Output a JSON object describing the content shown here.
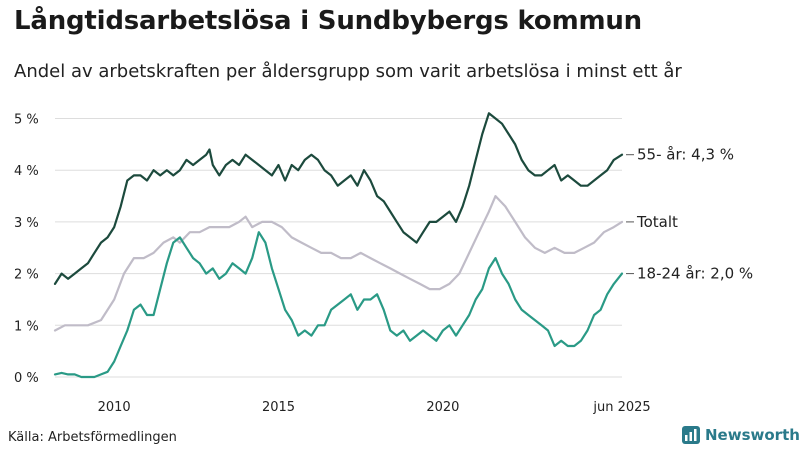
{
  "title": "Långtidsarbetslösa i Sundbybergs kommun",
  "subtitle": "Andel av arbetskraften per åldersgrupp som varit arbetslösa i minst ett år",
  "source": "Källa: Arbetsförmedlingen",
  "brand": "Newsworthy",
  "colors": {
    "s55": "#1c4a3d",
    "total": "#c0bcc8",
    "s1824": "#2a9a86",
    "brand": "#2a7a8a"
  },
  "chart_data": {
    "type": "line",
    "xlabel": "",
    "ylabel": "",
    "xlim": [
      2008.2,
      2025.45
    ],
    "ylim": [
      0,
      5.3
    ],
    "y_ticks": [
      0,
      1,
      2,
      3,
      4,
      5
    ],
    "y_tick_labels": [
      "0 %",
      "1 %",
      "2 %",
      "3 %",
      "4 %",
      "5 %"
    ],
    "x_ticks": [
      2010,
      2015,
      2020,
      2025.45
    ],
    "x_tick_labels": [
      "2010",
      "2015",
      "2020",
      "jun 2025"
    ],
    "grid": true,
    "series": [
      {
        "key": "s55",
        "name": "55- år",
        "end_label": "55- år: 4,3 %",
        "end_label_y": 4.3,
        "points": [
          [
            2008.2,
            1.8
          ],
          [
            2008.4,
            2.0
          ],
          [
            2008.6,
            1.9
          ],
          [
            2008.8,
            2.0
          ],
          [
            2009.0,
            2.1
          ],
          [
            2009.2,
            2.2
          ],
          [
            2009.4,
            2.4
          ],
          [
            2009.6,
            2.6
          ],
          [
            2009.8,
            2.7
          ],
          [
            2010.0,
            2.9
          ],
          [
            2010.2,
            3.3
          ],
          [
            2010.4,
            3.8
          ],
          [
            2010.6,
            3.9
          ],
          [
            2010.8,
            3.9
          ],
          [
            2011.0,
            3.8
          ],
          [
            2011.2,
            4.0
          ],
          [
            2011.4,
            3.9
          ],
          [
            2011.6,
            4.0
          ],
          [
            2011.8,
            3.9
          ],
          [
            2012.0,
            4.0
          ],
          [
            2012.2,
            4.2
          ],
          [
            2012.4,
            4.1
          ],
          [
            2012.6,
            4.2
          ],
          [
            2012.8,
            4.3
          ],
          [
            2012.9,
            4.4
          ],
          [
            2013.0,
            4.1
          ],
          [
            2013.2,
            3.9
          ],
          [
            2013.4,
            4.1
          ],
          [
            2013.6,
            4.2
          ],
          [
            2013.8,
            4.1
          ],
          [
            2014.0,
            4.3
          ],
          [
            2014.2,
            4.2
          ],
          [
            2014.4,
            4.1
          ],
          [
            2014.6,
            4.0
          ],
          [
            2014.8,
            3.9
          ],
          [
            2015.0,
            4.1
          ],
          [
            2015.2,
            3.8
          ],
          [
            2015.4,
            4.1
          ],
          [
            2015.6,
            4.0
          ],
          [
            2015.8,
            4.2
          ],
          [
            2016.0,
            4.3
          ],
          [
            2016.2,
            4.2
          ],
          [
            2016.4,
            4.0
          ],
          [
            2016.6,
            3.9
          ],
          [
            2016.8,
            3.7
          ],
          [
            2017.0,
            3.8
          ],
          [
            2017.2,
            3.9
          ],
          [
            2017.4,
            3.7
          ],
          [
            2017.6,
            4.0
          ],
          [
            2017.8,
            3.8
          ],
          [
            2018.0,
            3.5
          ],
          [
            2018.2,
            3.4
          ],
          [
            2018.4,
            3.2
          ],
          [
            2018.6,
            3.0
          ],
          [
            2018.8,
            2.8
          ],
          [
            2019.0,
            2.7
          ],
          [
            2019.2,
            2.6
          ],
          [
            2019.4,
            2.8
          ],
          [
            2019.6,
            3.0
          ],
          [
            2019.8,
            3.0
          ],
          [
            2020.0,
            3.1
          ],
          [
            2020.2,
            3.2
          ],
          [
            2020.4,
            3.0
          ],
          [
            2020.6,
            3.3
          ],
          [
            2020.8,
            3.7
          ],
          [
            2021.0,
            4.2
          ],
          [
            2021.2,
            4.7
          ],
          [
            2021.4,
            5.1
          ],
          [
            2021.6,
            5.0
          ],
          [
            2021.8,
            4.9
          ],
          [
            2022.0,
            4.7
          ],
          [
            2022.2,
            4.5
          ],
          [
            2022.4,
            4.2
          ],
          [
            2022.6,
            4.0
          ],
          [
            2022.8,
            3.9
          ],
          [
            2023.0,
            3.9
          ],
          [
            2023.2,
            4.0
          ],
          [
            2023.4,
            4.1
          ],
          [
            2023.6,
            3.8
          ],
          [
            2023.8,
            3.9
          ],
          [
            2024.0,
            3.8
          ],
          [
            2024.2,
            3.7
          ],
          [
            2024.4,
            3.7
          ],
          [
            2024.6,
            3.8
          ],
          [
            2024.8,
            3.9
          ],
          [
            2025.0,
            4.0
          ],
          [
            2025.2,
            4.2
          ],
          [
            2025.45,
            4.3
          ]
        ]
      },
      {
        "key": "total",
        "name": "Totalt",
        "end_label": "Totalt",
        "end_label_y": 3.0,
        "points": [
          [
            2008.2,
            0.9
          ],
          [
            2008.5,
            1.0
          ],
          [
            2008.8,
            1.0
          ],
          [
            2009.2,
            1.0
          ],
          [
            2009.6,
            1.1
          ],
          [
            2010.0,
            1.5
          ],
          [
            2010.3,
            2.0
          ],
          [
            2010.6,
            2.3
          ],
          [
            2010.9,
            2.3
          ],
          [
            2011.2,
            2.4
          ],
          [
            2011.5,
            2.6
          ],
          [
            2011.8,
            2.7
          ],
          [
            2012.0,
            2.6
          ],
          [
            2012.3,
            2.8
          ],
          [
            2012.6,
            2.8
          ],
          [
            2012.9,
            2.9
          ],
          [
            2013.2,
            2.9
          ],
          [
            2013.5,
            2.9
          ],
          [
            2013.8,
            3.0
          ],
          [
            2014.0,
            3.1
          ],
          [
            2014.2,
            2.9
          ],
          [
            2014.5,
            3.0
          ],
          [
            2014.8,
            3.0
          ],
          [
            2015.1,
            2.9
          ],
          [
            2015.4,
            2.7
          ],
          [
            2015.7,
            2.6
          ],
          [
            2016.0,
            2.5
          ],
          [
            2016.3,
            2.4
          ],
          [
            2016.6,
            2.4
          ],
          [
            2016.9,
            2.3
          ],
          [
            2017.2,
            2.3
          ],
          [
            2017.5,
            2.4
          ],
          [
            2017.8,
            2.3
          ],
          [
            2018.1,
            2.2
          ],
          [
            2018.4,
            2.1
          ],
          [
            2018.7,
            2.0
          ],
          [
            2019.0,
            1.9
          ],
          [
            2019.3,
            1.8
          ],
          [
            2019.6,
            1.7
          ],
          [
            2019.9,
            1.7
          ],
          [
            2020.2,
            1.8
          ],
          [
            2020.5,
            2.0
          ],
          [
            2020.8,
            2.4
          ],
          [
            2021.1,
            2.8
          ],
          [
            2021.4,
            3.2
          ],
          [
            2021.6,
            3.5
          ],
          [
            2021.9,
            3.3
          ],
          [
            2022.2,
            3.0
          ],
          [
            2022.5,
            2.7
          ],
          [
            2022.8,
            2.5
          ],
          [
            2023.1,
            2.4
          ],
          [
            2023.4,
            2.5
          ],
          [
            2023.7,
            2.4
          ],
          [
            2024.0,
            2.4
          ],
          [
            2024.3,
            2.5
          ],
          [
            2024.6,
            2.6
          ],
          [
            2024.9,
            2.8
          ],
          [
            2025.2,
            2.9
          ],
          [
            2025.45,
            3.0
          ]
        ]
      },
      {
        "key": "s1824",
        "name": "18-24 år",
        "end_label": "18-24 år: 2,0 %",
        "end_label_y": 2.0,
        "points": [
          [
            2008.2,
            0.05
          ],
          [
            2008.4,
            0.08
          ],
          [
            2008.6,
            0.05
          ],
          [
            2008.8,
            0.05
          ],
          [
            2009.0,
            0.0
          ],
          [
            2009.2,
            0.0
          ],
          [
            2009.4,
            0.0
          ],
          [
            2009.6,
            0.05
          ],
          [
            2009.8,
            0.1
          ],
          [
            2010.0,
            0.3
          ],
          [
            2010.2,
            0.6
          ],
          [
            2010.4,
            0.9
          ],
          [
            2010.6,
            1.3
          ],
          [
            2010.8,
            1.4
          ],
          [
            2011.0,
            1.2
          ],
          [
            2011.2,
            1.2
          ],
          [
            2011.4,
            1.7
          ],
          [
            2011.6,
            2.2
          ],
          [
            2011.8,
            2.6
          ],
          [
            2012.0,
            2.7
          ],
          [
            2012.2,
            2.5
          ],
          [
            2012.4,
            2.3
          ],
          [
            2012.6,
            2.2
          ],
          [
            2012.8,
            2.0
          ],
          [
            2013.0,
            2.1
          ],
          [
            2013.2,
            1.9
          ],
          [
            2013.4,
            2.0
          ],
          [
            2013.6,
            2.2
          ],
          [
            2013.8,
            2.1
          ],
          [
            2014.0,
            2.0
          ],
          [
            2014.2,
            2.3
          ],
          [
            2014.4,
            2.8
          ],
          [
            2014.6,
            2.6
          ],
          [
            2014.8,
            2.1
          ],
          [
            2015.0,
            1.7
          ],
          [
            2015.2,
            1.3
          ],
          [
            2015.4,
            1.1
          ],
          [
            2015.6,
            0.8
          ],
          [
            2015.8,
            0.9
          ],
          [
            2016.0,
            0.8
          ],
          [
            2016.2,
            1.0
          ],
          [
            2016.4,
            1.0
          ],
          [
            2016.6,
            1.3
          ],
          [
            2016.8,
            1.4
          ],
          [
            2017.0,
            1.5
          ],
          [
            2017.2,
            1.6
          ],
          [
            2017.4,
            1.3
          ],
          [
            2017.6,
            1.5
          ],
          [
            2017.8,
            1.5
          ],
          [
            2018.0,
            1.6
          ],
          [
            2018.2,
            1.3
          ],
          [
            2018.4,
            0.9
          ],
          [
            2018.6,
            0.8
          ],
          [
            2018.8,
            0.9
          ],
          [
            2019.0,
            0.7
          ],
          [
            2019.2,
            0.8
          ],
          [
            2019.4,
            0.9
          ],
          [
            2019.6,
            0.8
          ],
          [
            2019.8,
            0.7
          ],
          [
            2020.0,
            0.9
          ],
          [
            2020.2,
            1.0
          ],
          [
            2020.4,
            0.8
          ],
          [
            2020.6,
            1.0
          ],
          [
            2020.8,
            1.2
          ],
          [
            2021.0,
            1.5
          ],
          [
            2021.2,
            1.7
          ],
          [
            2021.4,
            2.1
          ],
          [
            2021.6,
            2.3
          ],
          [
            2021.8,
            2.0
          ],
          [
            2022.0,
            1.8
          ],
          [
            2022.2,
            1.5
          ],
          [
            2022.4,
            1.3
          ],
          [
            2022.6,
            1.2
          ],
          [
            2022.8,
            1.1
          ],
          [
            2023.0,
            1.0
          ],
          [
            2023.2,
            0.9
          ],
          [
            2023.4,
            0.6
          ],
          [
            2023.6,
            0.7
          ],
          [
            2023.8,
            0.6
          ],
          [
            2024.0,
            0.6
          ],
          [
            2024.2,
            0.7
          ],
          [
            2024.4,
            0.9
          ],
          [
            2024.6,
            1.2
          ],
          [
            2024.8,
            1.3
          ],
          [
            2025.0,
            1.6
          ],
          [
            2025.2,
            1.8
          ],
          [
            2025.45,
            2.0
          ]
        ]
      }
    ]
  }
}
